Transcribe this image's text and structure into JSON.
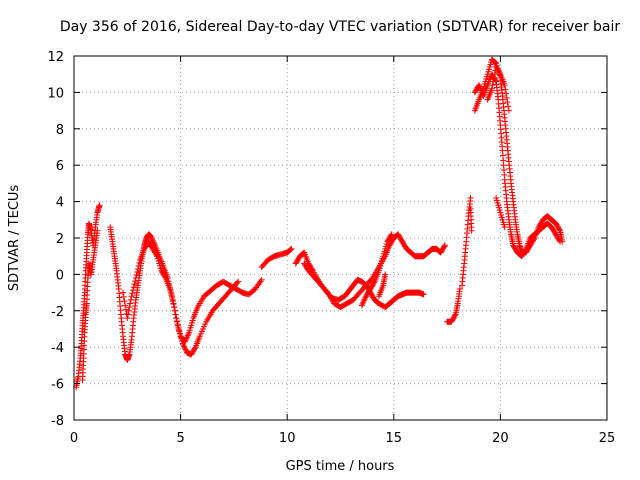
{
  "chart_data": {
    "type": "scatter",
    "title": "Day 356 of 2016, Sidereal Day-to-day VTEC variation (SDTVAR) for receiver bair",
    "xlabel": "GPS time / hours",
    "ylabel": "SDTVAR / TECUs",
    "xlim": [
      0,
      25
    ],
    "ylim": [
      -8,
      12
    ],
    "xticks": [
      0,
      5,
      10,
      15,
      20,
      25
    ],
    "yticks": [
      -8,
      -6,
      -4,
      -2,
      0,
      2,
      4,
      6,
      8,
      10,
      12
    ],
    "grid": true,
    "marker": "+",
    "color": "#ff0000",
    "series": [
      {
        "name": "SDTVAR",
        "segments": [
          [
            [
              0.1,
              -6.2
            ],
            [
              0.2,
              -5.6
            ],
            [
              0.3,
              -4.6
            ],
            [
              0.35,
              -3.8
            ],
            [
              0.4,
              -2.8
            ],
            [
              0.45,
              -2.0
            ],
            [
              0.5,
              -1.0
            ],
            [
              0.55,
              0.2
            ],
            [
              0.6,
              1.2
            ],
            [
              0.65,
              2.2
            ],
            [
              0.7,
              2.8
            ],
            [
              0.8,
              2.4
            ],
            [
              0.9,
              1.6
            ],
            [
              1.0,
              2.6
            ],
            [
              1.1,
              3.4
            ],
            [
              1.2,
              3.8
            ]
          ],
          [
            [
              0.4,
              -5.8
            ],
            [
              0.45,
              -4.6
            ],
            [
              0.5,
              -3.2
            ],
            [
              0.55,
              -2.2
            ],
            [
              0.6,
              -1.6
            ],
            [
              0.65,
              -0.2
            ],
            [
              0.7,
              0.6
            ],
            [
              0.8,
              0.0
            ],
            [
              0.9,
              0.8
            ],
            [
              1.0,
              1.6
            ],
            [
              1.1,
              2.4
            ]
          ],
          [
            [
              1.7,
              2.6
            ],
            [
              1.8,
              1.8
            ],
            [
              1.9,
              1.0
            ],
            [
              2.0,
              0.2
            ],
            [
              2.1,
              -0.8
            ],
            [
              2.2,
              -2.2
            ],
            [
              2.3,
              -3.4
            ],
            [
              2.4,
              -4.4
            ],
            [
              2.5,
              -4.7
            ],
            [
              2.6,
              -4.4
            ],
            [
              2.7,
              -3.6
            ],
            [
              2.8,
              -2.4
            ],
            [
              2.9,
              -1.4
            ],
            [
              3.0,
              -0.6
            ],
            [
              3.1,
              0.2
            ],
            [
              3.2,
              1.0
            ],
            [
              3.3,
              1.6
            ],
            [
              3.4,
              2.0
            ],
            [
              3.5,
              2.2
            ],
            [
              3.6,
              2.1
            ],
            [
              3.8,
              1.6
            ],
            [
              4.0,
              1.0
            ],
            [
              4.2,
              0.4
            ],
            [
              4.4,
              -0.2
            ],
            [
              4.6,
              -1.2
            ],
            [
              4.8,
              -2.4
            ],
            [
              5.0,
              -3.4
            ],
            [
              5.2,
              -3.7
            ],
            [
              5.4,
              -3.2
            ],
            [
              5.6,
              -2.4
            ],
            [
              5.8,
              -1.8
            ],
            [
              6.1,
              -1.2
            ],
            [
              6.4,
              -0.9
            ],
            [
              6.7,
              -0.6
            ],
            [
              7.0,
              -0.4
            ],
            [
              7.3,
              -0.6
            ],
            [
              7.6,
              -0.8
            ],
            [
              7.9,
              -1.0
            ],
            [
              8.2,
              -1.1
            ],
            [
              8.5,
              -0.8
            ],
            [
              8.8,
              -0.3
            ]
          ],
          [
            [
              2.3,
              -1.0
            ],
            [
              2.5,
              -2.4
            ],
            [
              2.7,
              -1.2
            ],
            [
              2.9,
              -0.2
            ],
            [
              3.1,
              0.8
            ],
            [
              3.3,
              1.4
            ],
            [
              3.5,
              1.8
            ],
            [
              3.7,
              1.4
            ],
            [
              3.9,
              1.0
            ],
            [
              4.1,
              0.2
            ],
            [
              4.3,
              -0.2
            ],
            [
              4.5,
              -0.8
            ],
            [
              4.7,
              -1.8
            ],
            [
              4.9,
              -3.0
            ],
            [
              5.1,
              -3.8
            ],
            [
              5.3,
              -4.3
            ],
            [
              5.5,
              -4.4
            ],
            [
              5.7,
              -4.0
            ],
            [
              5.9,
              -3.4
            ],
            [
              6.2,
              -2.6
            ],
            [
              6.5,
              -2.0
            ],
            [
              6.8,
              -1.6
            ],
            [
              7.1,
              -1.2
            ],
            [
              7.4,
              -0.8
            ],
            [
              7.7,
              -0.4
            ]
          ],
          [
            [
              8.8,
              0.4
            ],
            [
              9.1,
              0.8
            ],
            [
              9.4,
              1.0
            ],
            [
              9.7,
              1.1
            ],
            [
              10.0,
              1.2
            ],
            [
              10.2,
              1.4
            ]
          ],
          [
            [
              10.4,
              0.6
            ],
            [
              10.6,
              1.0
            ],
            [
              10.8,
              1.2
            ],
            [
              11.0,
              0.6
            ],
            [
              11.2,
              0.2
            ],
            [
              11.5,
              -0.4
            ],
            [
              11.8,
              -0.9
            ],
            [
              12.1,
              -1.3
            ],
            [
              12.4,
              -1.4
            ],
            [
              12.7,
              -1.2
            ],
            [
              12.9,
              -0.9
            ],
            [
              13.1,
              -0.6
            ],
            [
              13.3,
              -0.3
            ],
            [
              13.5,
              -0.4
            ],
            [
              13.7,
              -0.6
            ],
            [
              13.9,
              -1.0
            ],
            [
              14.1,
              -1.4
            ],
            [
              14.3,
              -1.6
            ],
            [
              14.6,
              -1.8
            ],
            [
              14.8,
              -1.6
            ],
            [
              15.0,
              -1.4
            ],
            [
              15.2,
              -1.2
            ],
            [
              15.4,
              -1.1
            ],
            [
              15.6,
              -1.0
            ],
            [
              15.8,
              -1.0
            ],
            [
              16.0,
              -1.0
            ],
            [
              16.2,
              -1.0
            ],
            [
              16.4,
              -1.1
            ]
          ],
          [
            [
              10.8,
              0.6
            ],
            [
              11.0,
              0.2
            ],
            [
              11.3,
              -0.2
            ],
            [
              11.6,
              -0.6
            ],
            [
              11.9,
              -1.0
            ],
            [
              12.2,
              -1.6
            ],
            [
              12.5,
              -1.8
            ],
            [
              12.8,
              -1.6
            ],
            [
              13.1,
              -1.4
            ],
            [
              13.4,
              -1.0
            ],
            [
              13.7,
              -0.6
            ],
            [
              14.0,
              -0.2
            ],
            [
              14.3,
              0.4
            ],
            [
              14.6,
              1.0
            ],
            [
              14.8,
              1.6
            ],
            [
              15.0,
              2.0
            ],
            [
              15.2,
              2.2
            ],
            [
              15.4,
              1.8
            ],
            [
              15.6,
              1.4
            ],
            [
              15.8,
              1.2
            ],
            [
              16.0,
              1.0
            ],
            [
              16.2,
              1.0
            ],
            [
              16.4,
              1.0
            ]
          ],
          [
            [
              13.5,
              -1.7
            ],
            [
              13.7,
              -1.2
            ],
            [
              13.9,
              -0.8
            ],
            [
              14.1,
              -0.4
            ],
            [
              14.3,
              0.2
            ],
            [
              14.5,
              1.0
            ],
            [
              14.7,
              1.8
            ],
            [
              14.9,
              2.2
            ]
          ],
          [
            [
              14.3,
              -1.2
            ],
            [
              14.5,
              -0.6
            ],
            [
              14.6,
              0.0
            ]
          ],
          [
            [
              16.4,
              1.0
            ],
            [
              16.6,
              1.2
            ],
            [
              16.8,
              1.4
            ],
            [
              17.0,
              1.4
            ],
            [
              17.2,
              1.2
            ],
            [
              17.4,
              1.6
            ]
          ],
          [
            [
              17.5,
              -2.6
            ],
            [
              17.7,
              -2.6
            ],
            [
              17.9,
              -2.2
            ],
            [
              18.0,
              -1.6
            ],
            [
              18.1,
              -0.8
            ]
          ],
          [
            [
              18.2,
              -0.6
            ],
            [
              18.3,
              0.6
            ],
            [
              18.4,
              1.8
            ],
            [
              18.5,
              3.2
            ],
            [
              18.6,
              4.2
            ]
          ],
          [
            [
              18.6,
              3.6
            ],
            [
              18.65,
              2.4
            ]
          ],
          [
            [
              18.8,
              9.0
            ],
            [
              19.0,
              9.6
            ],
            [
              19.2,
              10.2
            ],
            [
              19.4,
              11.0
            ],
            [
              19.6,
              11.8
            ],
            [
              19.8,
              11.6
            ],
            [
              20.0,
              10.8
            ],
            [
              20.1,
              9.8
            ],
            [
              20.2,
              8.6
            ],
            [
              20.3,
              7.4
            ],
            [
              20.4,
              6.2
            ],
            [
              20.5,
              5.0
            ],
            [
              20.6,
              4.0
            ],
            [
              20.7,
              3.0
            ],
            [
              20.8,
              2.2
            ],
            [
              20.9,
              1.6
            ],
            [
              21.0,
              1.2
            ],
            [
              21.2,
              1.2
            ],
            [
              21.4,
              1.6
            ],
            [
              21.6,
              2.0
            ],
            [
              21.8,
              2.6
            ],
            [
              22.0,
              3.0
            ],
            [
              22.2,
              3.2
            ],
            [
              22.4,
              3.0
            ],
            [
              22.6,
              2.8
            ],
            [
              22.8,
              2.4
            ],
            [
              22.9,
              1.8
            ]
          ],
          [
            [
              18.8,
              10.0
            ],
            [
              19.0,
              10.4
            ],
            [
              19.2,
              9.8
            ],
            [
              19.4,
              10.4
            ],
            [
              19.6,
              11.0
            ],
            [
              19.8,
              10.6
            ],
            [
              19.9,
              9.6
            ],
            [
              20.0,
              8.2
            ],
            [
              20.1,
              6.8
            ],
            [
              20.2,
              5.2
            ],
            [
              20.3,
              4.0
            ],
            [
              20.4,
              3.0
            ],
            [
              20.5,
              2.2
            ],
            [
              20.6,
              1.6
            ],
            [
              20.8,
              1.2
            ],
            [
              21.0,
              1.0
            ],
            [
              21.2,
              1.4
            ],
            [
              21.4,
              2.0
            ],
            [
              21.6,
              2.2
            ],
            [
              21.8,
              2.4
            ],
            [
              22.0,
              2.6
            ],
            [
              22.2,
              2.8
            ],
            [
              22.4,
              2.6
            ],
            [
              22.6,
              2.2
            ],
            [
              22.8,
              1.8
            ]
          ],
          [
            [
              19.4,
              9.6
            ],
            [
              19.6,
              10.2
            ],
            [
              19.8,
              11.4
            ],
            [
              20.0,
              11.0
            ],
            [
              20.2,
              10.4
            ],
            [
              20.4,
              9.0
            ]
          ],
          [
            [
              19.8,
              4.2
            ],
            [
              20.0,
              3.4
            ],
            [
              20.2,
              2.6
            ]
          ]
        ]
      }
    ]
  }
}
